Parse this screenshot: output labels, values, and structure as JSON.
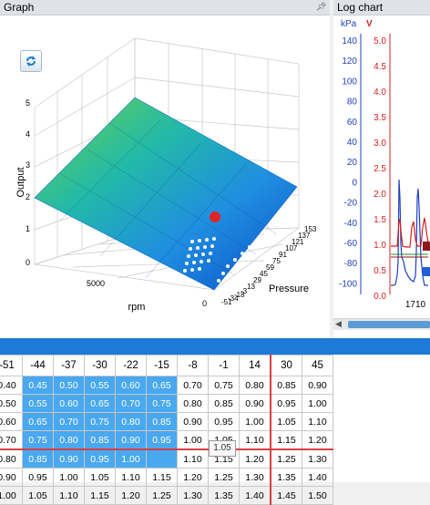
{
  "panels": {
    "graph_title": "Graph",
    "log_title": "Log chart"
  },
  "graph": {
    "z_label": "Output",
    "x_label": "rpm",
    "y_label": "Pressure",
    "z_ticks": [
      "5",
      "4",
      "3",
      "2",
      "1",
      "0"
    ],
    "rpm_ticks": [
      "5000",
      "0"
    ],
    "pressure_ticks": [
      "153",
      "137",
      "121",
      "107",
      "91",
      "75",
      "59",
      "45",
      "29",
      "13",
      "-3",
      "-18",
      "-34",
      "-51"
    ],
    "refresh_icon": "refresh-icon"
  },
  "log_chart": {
    "left_unit": "kPa",
    "right_unit": "V",
    "kpa_ticks": [
      "140",
      "120",
      "100",
      "80",
      "60",
      "40",
      "20",
      "0",
      "-20",
      "-40",
      "-60",
      "-80",
      "-100"
    ],
    "v_ticks": [
      "5.0",
      "4.5",
      "4.0",
      "3.5",
      "3.0",
      "2.5",
      "2.0",
      "1.5",
      "1.0",
      "0.5",
      "0.0"
    ],
    "x_tick": "1710",
    "colors": {
      "kpa": "#1f3fbf",
      "voltage": "#d42020"
    }
  },
  "table": {
    "headers": [
      "-51",
      "-44",
      "-37",
      "-30",
      "-22",
      "-15",
      "-8",
      "-1",
      "14",
      "30",
      "45"
    ],
    "rows": [
      [
        "0.40",
        "0.45",
        "0.50",
        "0.55",
        "0.60",
        "0.65",
        "0.70",
        "0.75",
        "0.80",
        "0.85",
        "0.90"
      ],
      [
        "0.50",
        "0.55",
        "0.60",
        "0.65",
        "0.70",
        "0.75",
        "0.80",
        "0.85",
        "0.90",
        "0.95",
        "1.00"
      ],
      [
        "0.60",
        "0.65",
        "0.70",
        "0.75",
        "0.80",
        "0.85",
        "0.90",
        "0.95",
        "1.00",
        "1.05",
        "1.10"
      ],
      [
        "0.70",
        "0.75",
        "0.80",
        "0.85",
        "0.90",
        "0.95",
        "1.00",
        "1.05",
        "1.10",
        "1.15",
        "1.20"
      ],
      [
        "0.80",
        "0.85",
        "0.90",
        "0.95",
        "1.00",
        "",
        "1.10",
        "1.15",
        "1.20",
        "1.25",
        "1.30"
      ],
      [
        "0.90",
        "0.95",
        "1.00",
        "1.05",
        "1.10",
        "1.15",
        "1.20",
        "1.25",
        "1.30",
        "1.35",
        "1.40"
      ],
      [
        "1.00",
        "1.05",
        "1.10",
        "1.15",
        "1.20",
        "1.25",
        "1.30",
        "1.35",
        "1.40",
        "1.45",
        "1.50"
      ]
    ],
    "tooltip": "1.05",
    "selection_color": "#4aa8f0",
    "marker_color": "#d84040"
  }
}
